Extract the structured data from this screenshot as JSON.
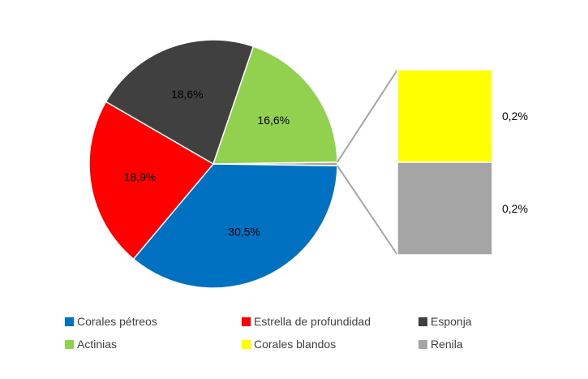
{
  "chart_data": {
    "type": "pie",
    "subtype": "bar-of-pie",
    "title": "",
    "slices": [
      {
        "name": "Corales pétreos",
        "value": 30.5,
        "label": "30,5%",
        "color": "#0070C0"
      },
      {
        "name": "Estrella de profundidad",
        "value": 18.9,
        "label": "18,9%",
        "color": "#FF0000"
      },
      {
        "name": "Esponja",
        "value": 18.6,
        "label": "18,6%",
        "color": "#404040"
      },
      {
        "name": "Actinias",
        "value": 16.6,
        "label": "16,6%",
        "color": "#92D050"
      },
      {
        "name": "Corales blandos",
        "value": 0.2,
        "label": "0,2%",
        "color": "#FFFF00"
      },
      {
        "name": "Renila",
        "value": 0.2,
        "label": "0,2%",
        "color": "#A5A5A5"
      }
    ],
    "bar_of_pie_members": [
      "Corales blandos",
      "Renila"
    ],
    "legend_position": "bottom"
  }
}
